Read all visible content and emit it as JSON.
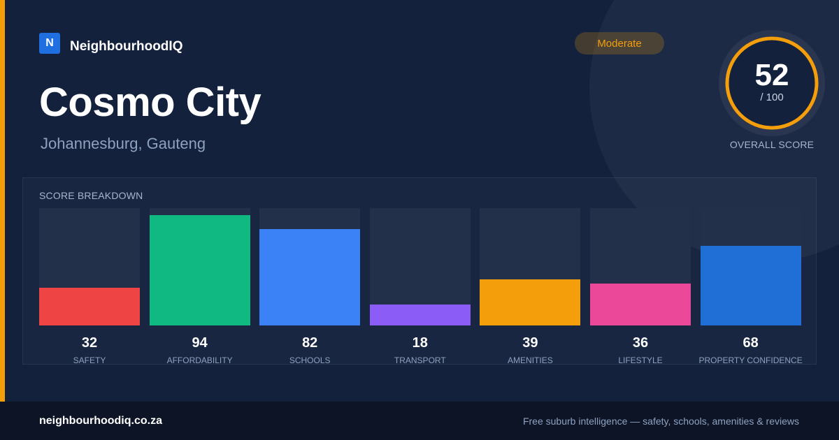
{
  "brand": {
    "logo_letter": "N",
    "name": "NeighbourhoodIQ",
    "color": "#1f6fe0"
  },
  "rating_badge": {
    "label": "Moderate",
    "color": "#f59e0b"
  },
  "suburb": {
    "name": "Cosmo City",
    "location": "Johannesburg, Gauteng"
  },
  "overall_score": {
    "value": "52",
    "max_label": "/ 100",
    "caption": "OVERALL SCORE",
    "ring_color": "#f59e0b"
  },
  "breakdown": {
    "title": "SCORE BREAKDOWN",
    "max": 100
  },
  "chart_data": {
    "type": "bar",
    "categories": [
      "SAFETY",
      "AFFORDABILITY",
      "SCHOOLS",
      "TRANSPORT",
      "AMENITIES",
      "LIFESTYLE",
      "PROPERTY CONFIDENCE"
    ],
    "values": [
      32,
      94,
      82,
      18,
      39,
      36,
      68
    ],
    "colors": [
      "#ef4444",
      "#10b981",
      "#3b82f6",
      "#8b5cf6",
      "#f59e0b",
      "#ec4899",
      "#1f6fd6"
    ],
    "ylim": [
      0,
      100
    ]
  },
  "footer": {
    "domain": "neighbourhoodiq.co.za",
    "tagline": "Free suburb intelligence — safety, schools, amenities & reviews"
  },
  "colors": {
    "background": "#13213d",
    "accent": "#f59e0b",
    "footer_background": "#0c1426"
  }
}
